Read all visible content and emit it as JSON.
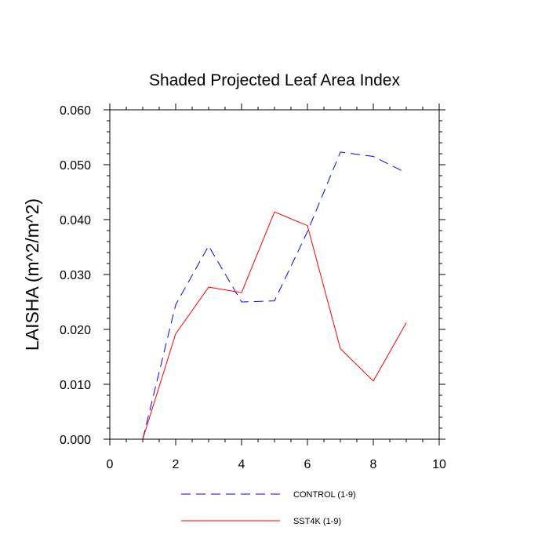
{
  "chart_data": {
    "type": "line",
    "title": "Shaded Projected Leaf Area Index",
    "xlabel": "",
    "ylabel": "LAISHA  (m^2/m^2)",
    "xlim": [
      0,
      10
    ],
    "ylim": [
      0,
      0.06
    ],
    "x_ticks": [
      0,
      2,
      4,
      6,
      8,
      10
    ],
    "x_tick_labels": [
      "0",
      "2",
      "4",
      "6",
      "8",
      "10"
    ],
    "y_ticks": [
      0,
      0.01,
      0.02,
      0.03,
      0.04,
      0.05,
      0.06
    ],
    "y_tick_labels": [
      "0.000",
      "0.010",
      "0.020",
      "0.030",
      "0.040",
      "0.050",
      "0.060"
    ],
    "grid": false,
    "legend_position": "bottom",
    "series": [
      {
        "name": "CONTROL (1-9)",
        "color": "#0000ff",
        "style": "dashed",
        "x": [
          1,
          2,
          3,
          4,
          5,
          6,
          7,
          8,
          9
        ],
        "values": [
          0.0,
          0.0245,
          0.0352,
          0.025,
          0.0252,
          0.0378,
          0.0523,
          0.0515,
          0.0485
        ]
      },
      {
        "name": "SST4K (1-9)",
        "color": "#ff0000",
        "style": "solid",
        "x": [
          1,
          2,
          3,
          4,
          5,
          6,
          7,
          8,
          9
        ],
        "values": [
          0.0,
          0.0192,
          0.0277,
          0.0267,
          0.0414,
          0.0389,
          0.0165,
          0.0106,
          0.0212
        ]
      }
    ]
  }
}
